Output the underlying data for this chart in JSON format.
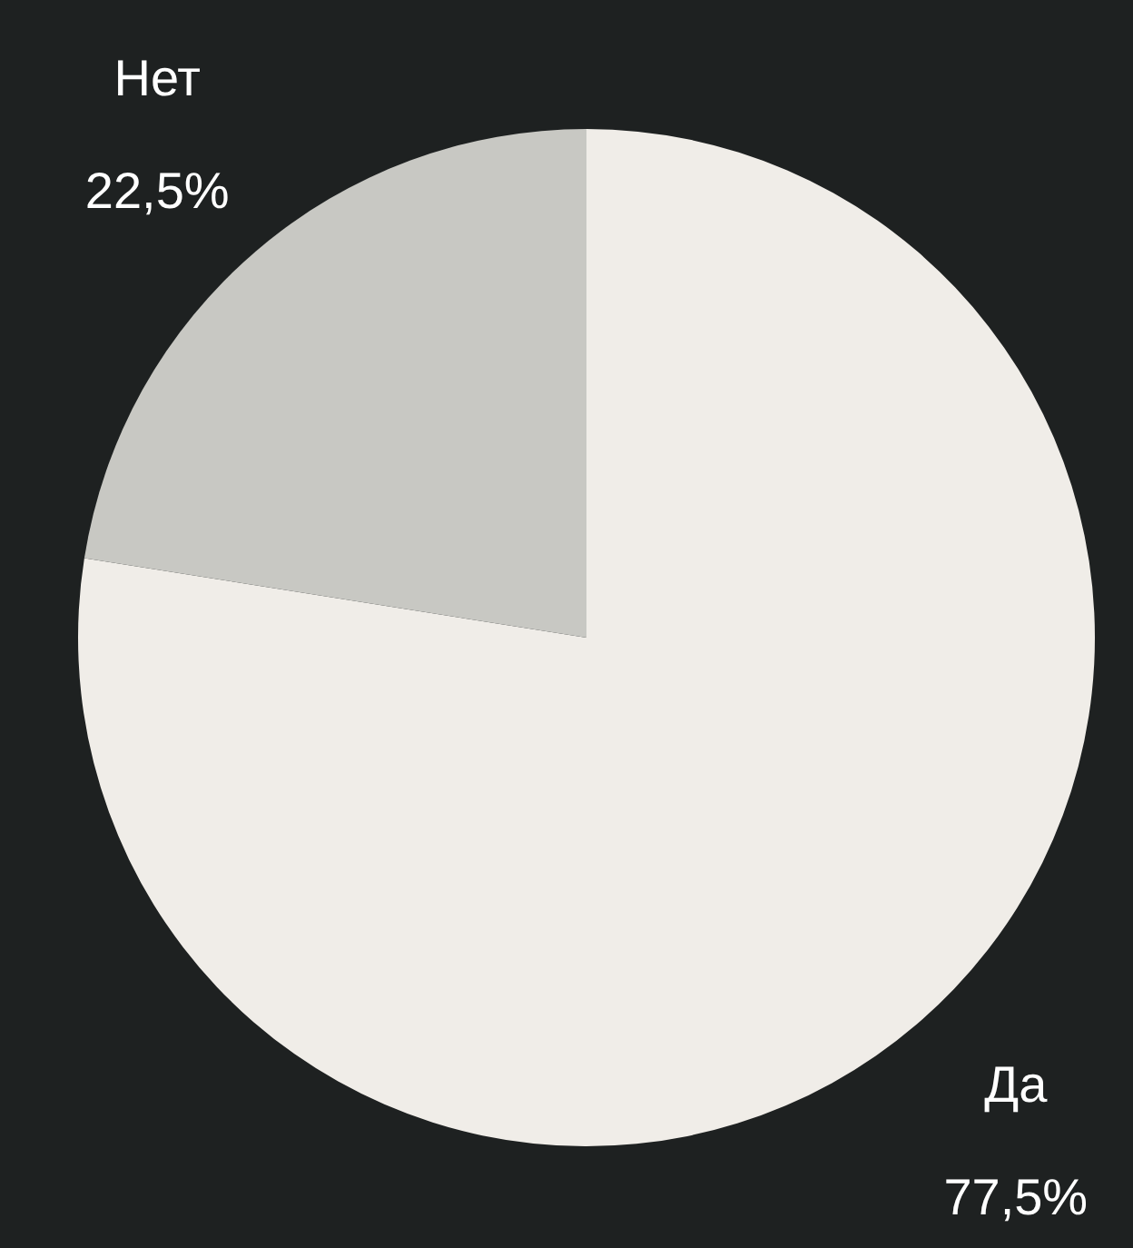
{
  "chart_data": {
    "type": "pie",
    "categories": [
      "Да",
      "Нет"
    ],
    "values": [
      77.5,
      22.5
    ],
    "colors": [
      "#f0ede8",
      "#c8c8c3"
    ],
    "value_labels": [
      "77,5%",
      "22,5%"
    ]
  }
}
